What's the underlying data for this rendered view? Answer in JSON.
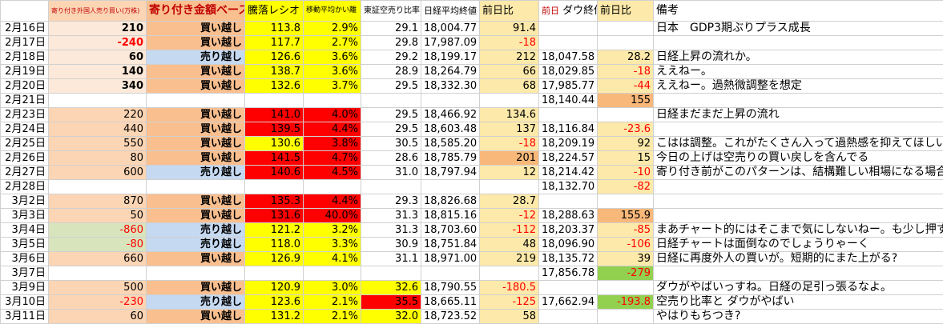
{
  "header": [
    "寄り付き外国人売り買い(万株)",
    "寄り付き金額ベース",
    "騰落レシオ",
    "移動平均かい離",
    "東証空売り比率",
    "日経平均終値",
    "前日比",
    [
      "前日",
      "ダウ終値"
    ],
    "前日比",
    "備考"
  ],
  "rows": [
    [
      "2月16日",
      "210",
      "買い越し",
      "113.8",
      "2.9%",
      "29.1",
      "18,004.77",
      "91.4",
      null,
      null,
      "日本　GDP3期ぶりプラス成長"
    ],
    [
      "2月17日",
      "-240",
      "買い越し",
      "117.7",
      "2.7%",
      "29.8",
      "17,987.09",
      "-18",
      null,
      null,
      null
    ],
    [
      "2月18日",
      "60",
      "売り越し",
      "126.6",
      "3.6%",
      "29.2",
      "18,199.17",
      "212",
      "18,047.58",
      "28.2",
      "日経上昇の流れか。"
    ],
    [
      "2月19日",
      "140",
      "買い越し",
      "138.7",
      "3.6%",
      "28.9",
      "18,264.79",
      "66",
      "18,029.85",
      "-18",
      "ええねー。"
    ],
    [
      "2月20日",
      "340",
      "買い越し",
      "132.6",
      "3.7%",
      "29.5",
      "18,332.30",
      "68",
      "17,985.77",
      "-44",
      "ええねー。過熱微調整を想定"
    ],
    [
      "2月21日",
      null,
      null,
      null,
      null,
      null,
      null,
      null,
      "18,140.44",
      "155",
      null
    ],
    [
      "2月23日",
      "220",
      "買い越し",
      "141.0",
      "4.0%",
      "29.5",
      "18,466.92",
      "134.6",
      null,
      null,
      "日経まだまだ上昇の流れ"
    ],
    [
      "2月24日",
      "440",
      "買い越し",
      "139.5",
      "4.4%",
      "29.5",
      "18,603.48",
      "137",
      "18,116.84",
      "-23.6",
      null
    ],
    [
      "2月25日",
      "550",
      "買い越し",
      "130.6",
      "3.8%",
      "30.5",
      "18,585.20",
      "-18",
      "18,209.19",
      "92",
      "こはは調整。これがたくさん入って過熱感を抑えてほしい。"
    ],
    [
      "2月26日",
      "80",
      "買い越し",
      "141.5",
      "4.7%",
      "28.6",
      "18,785.79",
      "201",
      "18,224.57",
      "15",
      "今日の上げは空売りの買い戻しを含んでる"
    ],
    [
      "2月27日",
      "600",
      "売り越し",
      "140.6",
      "4.5%",
      "31.0",
      "18,797.94",
      "12",
      "18,214.42",
      "-10",
      "寄り付き前がこのパターンは、結構難しい相場になる場合あり"
    ],
    [
      "2月28日",
      null,
      null,
      null,
      null,
      null,
      null,
      null,
      "18,132.70",
      "-82",
      null
    ],
    [
      "3月2日",
      "870",
      "買い越し",
      "135.3",
      "4.4%",
      "29.3",
      "18,826.68",
      "28.7",
      null,
      null,
      null
    ],
    [
      "3月3日",
      "50",
      "買い越し",
      "131.6",
      "40.0%",
      "31.3",
      "18,815.16",
      "-12",
      "18,288.63",
      "155.9",
      null
    ],
    [
      "3月4日",
      "-860",
      "売り越し",
      "121.2",
      "3.2%",
      "31.3",
      "18,703.60",
      "-112",
      "18,203.37",
      "-85",
      "まあチャート的にはそこまで気にしないねー。も少し押すかもね"
    ],
    [
      "3月5日",
      "-80",
      "売り越し",
      "118.0",
      "3.3%",
      "30.9",
      "18,751.84",
      "48",
      "18,096.90",
      "-106",
      "日経チャートは面倒なのでしょうりゃーく"
    ],
    [
      "3月6日",
      "660",
      "買い越し",
      "126.9",
      "4.1%",
      "31.1",
      "18,971.00",
      "219",
      "18,135.72",
      "39",
      "日経に再度外人の買いが。短期的にまた上がる?"
    ],
    [
      "3月7日",
      null,
      null,
      null,
      null,
      null,
      null,
      null,
      "17,856.78",
      "-279",
      null
    ],
    [
      "3月9日",
      "500",
      "買い越し",
      "120.9",
      "3.0%",
      "32.6",
      "18,790.55",
      "-180.5",
      null,
      null,
      "ダウがやばいっすね。日経の足引っ張るなよ。"
    ],
    [
      "3月10日",
      "-230",
      "売り越し",
      "123.6",
      "2.1%",
      "35.5",
      "18,665.11",
      "-125",
      "17,662.94",
      "-193.8",
      "空売り比率と ダウがやばい"
    ],
    [
      "3月11日",
      "60",
      "買い越し",
      "131.2",
      "2.1%",
      "32.0",
      "18,723.52",
      "58",
      null,
      null,
      "やはりもちつき?"
    ]
  ]
}
